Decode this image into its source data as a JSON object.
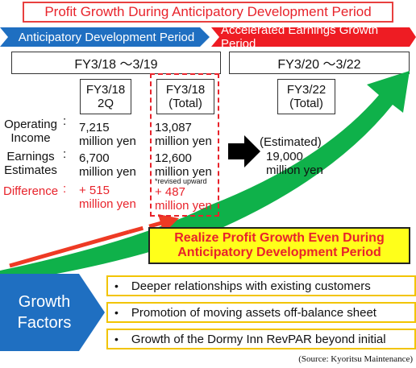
{
  "title": "Profit Growth During Anticipatory Development Period",
  "phases": {
    "left": "Anticipatory Development Period",
    "right": "Accelerated Earnings Growth Period"
  },
  "periods": {
    "left": "FY3/18 ～3/19",
    "right": "FY3/20 ～3/22"
  },
  "columns": {
    "q2": [
      "FY3/18",
      "2Q"
    ],
    "total": [
      "FY3/18",
      "(Total)"
    ],
    "fy22": [
      "FY3/22",
      "(Total)"
    ]
  },
  "row_labels": {
    "operating": [
      "Operating",
      "Income"
    ],
    "earnings": [
      "Earnings",
      "Estimates"
    ],
    "difference": "Difference",
    "colon": ":"
  },
  "values": {
    "q2_number": "7,215",
    "q2_unit": "million yen",
    "q2_est_number": "6,700",
    "q2_est_unit": "million yen",
    "q2_diff": "+ 515",
    "q2_diff_unit": "million yen",
    "total_number": "13,087",
    "total_unit": "million yen",
    "total_est_number": "12,600",
    "total_est_unit": "million yen",
    "revised_note": "*revised upward",
    "total_diff": "+ 487",
    "total_diff_unit": "million yen",
    "fy22_label": "(Estimated)",
    "fy22_number": "19,000",
    "fy22_unit": "million yen"
  },
  "banner": [
    "Realize Profit Growth Even During",
    "Anticipatory Development Period"
  ],
  "growth_factors_label": [
    "Growth",
    "Factors"
  ],
  "factors": [
    "Deeper relationships with existing customers",
    "Promotion of moving assets off-balance sheet",
    "Growth of the Dormy Inn RevPAR beyond initial"
  ],
  "bullet": "•",
  "source": "(Source: Kyoritsu Maintenance)",
  "colors": {
    "accent_red": "#e8232b",
    "blue": "#1f6fc1",
    "green": "#00b050",
    "yellow": "#ffff1a"
  }
}
